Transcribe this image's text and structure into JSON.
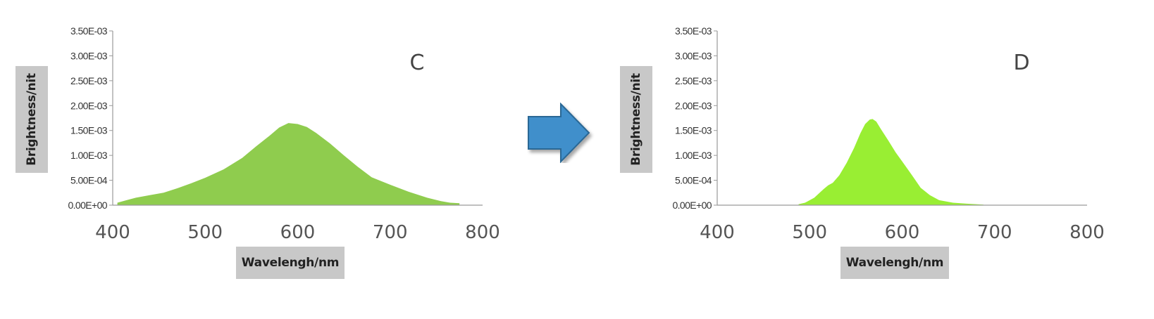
{
  "colors": {
    "panel_c_fill": "#8fcc4e",
    "panel_d_fill": "#99ee33",
    "arrow_fill": "#3f8fcb",
    "label_box": "#c8c8c8"
  },
  "arrow": {
    "icon": "right-arrow-icon"
  },
  "chart_data": [
    {
      "type": "area",
      "annotation": "C",
      "xlabel": "Wavelengh/nm",
      "ylabel": "Brightness/nit",
      "xlim": [
        400,
        800
      ],
      "ylim": [
        0,
        0.0035
      ],
      "x_ticks": [
        "400",
        "500",
        "600",
        "700",
        "800"
      ],
      "y_ticks": [
        "0.00E+00",
        "5.00E-04",
        "1.00E-03",
        "1.50E-03",
        "2.00E-03",
        "2.50E-03",
        "3.00E-03",
        "3.50E-03"
      ],
      "grid": false,
      "x": [
        405,
        415,
        425,
        440,
        455,
        470,
        485,
        500,
        520,
        540,
        555,
        570,
        580,
        590,
        600,
        610,
        620,
        635,
        650,
        665,
        680,
        700,
        720,
        740,
        755,
        765,
        775
      ],
      "y": [
        5e-05,
        0.0001,
        0.00015,
        0.0002,
        0.00025,
        0.00034,
        0.00044,
        0.00055,
        0.00072,
        0.00095,
        0.00118,
        0.0014,
        0.00156,
        0.00165,
        0.00163,
        0.00157,
        0.00145,
        0.00124,
        0.001,
        0.00077,
        0.00056,
        0.00041,
        0.00027,
        0.00015,
        8e-05,
        5e-05,
        4e-05
      ]
    },
    {
      "type": "area",
      "annotation": "D",
      "xlabel": "Wavelengh/nm",
      "ylabel": "Brightness/nit",
      "xlim": [
        400,
        800
      ],
      "ylim": [
        0,
        0.0035
      ],
      "x_ticks": [
        "400",
        "500",
        "600",
        "700",
        "800"
      ],
      "y_ticks": [
        "0.00E+00",
        "5.00E-04",
        "1.00E-03",
        "1.50E-03",
        "2.00E-03",
        "2.50E-03",
        "3.00E-03",
        "3.50E-03"
      ],
      "grid": false,
      "x": [
        488,
        495,
        505,
        515,
        520,
        525,
        532,
        540,
        548,
        555,
        560,
        565,
        568,
        572,
        577,
        585,
        593,
        600,
        610,
        620,
        630,
        640,
        655,
        670,
        688
      ],
      "y": [
        2e-05,
        5e-05,
        0.00015,
        0.00032,
        0.0004,
        0.00045,
        0.0006,
        0.00085,
        0.00115,
        0.00145,
        0.00163,
        0.00172,
        0.00173,
        0.00168,
        0.00153,
        0.0013,
        0.00106,
        0.00088,
        0.00062,
        0.00035,
        0.0002,
        0.0001,
        5e-05,
        3e-05,
        1e-05
      ]
    }
  ]
}
